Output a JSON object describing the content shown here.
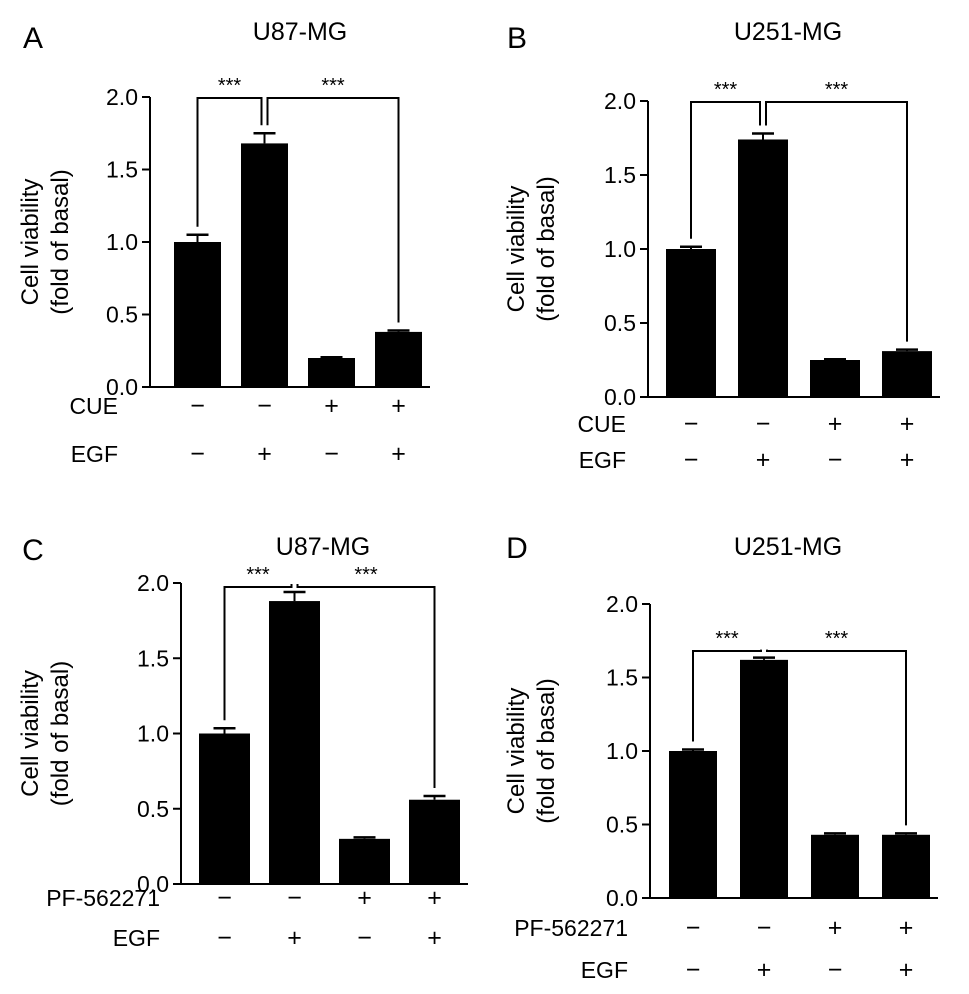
{
  "chart_data": [
    {
      "panel_label": "A",
      "type": "bar",
      "title": "U87-MG",
      "ylabel": [
        "Cell viability",
        "(fold of basal)"
      ],
      "ylim": [
        0,
        2.0
      ],
      "yticks": [
        "0.0",
        "0.5",
        "1.0",
        "1.5",
        "2.0"
      ],
      "categories": [
        "−/−",
        "−/+",
        "+/−",
        "+/+"
      ],
      "values": [
        1.0,
        1.68,
        0.2,
        0.38
      ],
      "errors": [
        0.05,
        0.07,
        0.005,
        0.01
      ],
      "treatment_rows": [
        {
          "label": "CUE",
          "signs": [
            "−",
            "−",
            "+",
            "+"
          ]
        },
        {
          "label": "EGF",
          "signs": [
            "−",
            "+",
            "−",
            "+"
          ]
        }
      ],
      "significance": [
        {
          "from": 0,
          "to": 1,
          "label": "***"
        },
        {
          "from": 1,
          "to": 3,
          "label": "***"
        }
      ]
    },
    {
      "panel_label": "B",
      "type": "bar",
      "title": "U251-MG",
      "ylabel": [
        "Cell viability",
        "(fold of basal)"
      ],
      "ylim": [
        0,
        2.0
      ],
      "yticks": [
        "0.0",
        "0.5",
        "1.0",
        "1.5",
        "2.0"
      ],
      "categories": [
        "−/−",
        "−/+",
        "+/−",
        "+/+"
      ],
      "values": [
        1.0,
        1.74,
        0.25,
        0.31
      ],
      "errors": [
        0.015,
        0.04,
        0.005,
        0.01
      ],
      "treatment_rows": [
        {
          "label": "CUE",
          "signs": [
            "−",
            "−",
            "+",
            "+"
          ]
        },
        {
          "label": "EGF",
          "signs": [
            "−",
            "+",
            "−",
            "+"
          ]
        }
      ],
      "significance": [
        {
          "from": 0,
          "to": 1,
          "label": "***"
        },
        {
          "from": 1,
          "to": 3,
          "label": "***"
        }
      ]
    },
    {
      "panel_label": "C",
      "type": "bar",
      "title": "U87-MG",
      "ylabel": [
        "Cell viability",
        "(fold of basal)"
      ],
      "ylim": [
        0,
        2.0
      ],
      "yticks": [
        "0.0",
        "0.5",
        "1.0",
        "1.5",
        "2.0"
      ],
      "categories": [
        "−/−",
        "−/+",
        "+/−",
        "+/+"
      ],
      "values": [
        1.0,
        1.88,
        0.3,
        0.56
      ],
      "errors": [
        0.035,
        0.06,
        0.01,
        0.025
      ],
      "treatment_rows": [
        {
          "label": "PF-562271",
          "signs": [
            "−",
            "−",
            "+",
            "+"
          ]
        },
        {
          "label": "EGF",
          "signs": [
            "−",
            "+",
            "−",
            "+"
          ]
        }
      ],
      "significance": [
        {
          "from": 0,
          "to": 1,
          "label": "***"
        },
        {
          "from": 1,
          "to": 3,
          "label": "***"
        }
      ]
    },
    {
      "panel_label": "D",
      "type": "bar",
      "title": "U251-MG",
      "ylabel": [
        "Cell viability",
        "(fold of basal)"
      ],
      "ylim": [
        0,
        2.0
      ],
      "yticks": [
        "0.0",
        "0.5",
        "1.0",
        "1.5",
        "2.0"
      ],
      "categories": [
        "−/−",
        "−/+",
        "+/−",
        "+/+"
      ],
      "values": [
        1.0,
        1.62,
        0.43,
        0.43
      ],
      "errors": [
        0.01,
        0.015,
        0.01,
        0.01
      ],
      "treatment_rows": [
        {
          "label": "PF-562271",
          "signs": [
            "−",
            "−",
            "+",
            "+"
          ]
        },
        {
          "label": "EGF",
          "signs": [
            "−",
            "+",
            "−",
            "+"
          ]
        }
      ],
      "significance": [
        {
          "from": 0,
          "to": 1,
          "label": "***"
        },
        {
          "from": 1,
          "to": 3,
          "label": "***"
        }
      ]
    }
  ]
}
